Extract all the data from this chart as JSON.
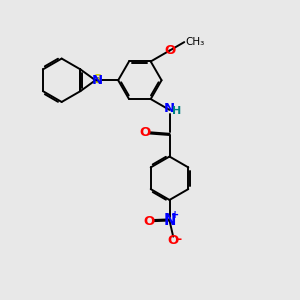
{
  "bg_color": "#e8e8e8",
  "bond_color": "black",
  "bond_width": 1.4,
  "atom_colors": {
    "S": "#cccc00",
    "N": "blue",
    "O": "red",
    "H": "#008080",
    "C": "black"
  },
  "font_size": 9.5
}
